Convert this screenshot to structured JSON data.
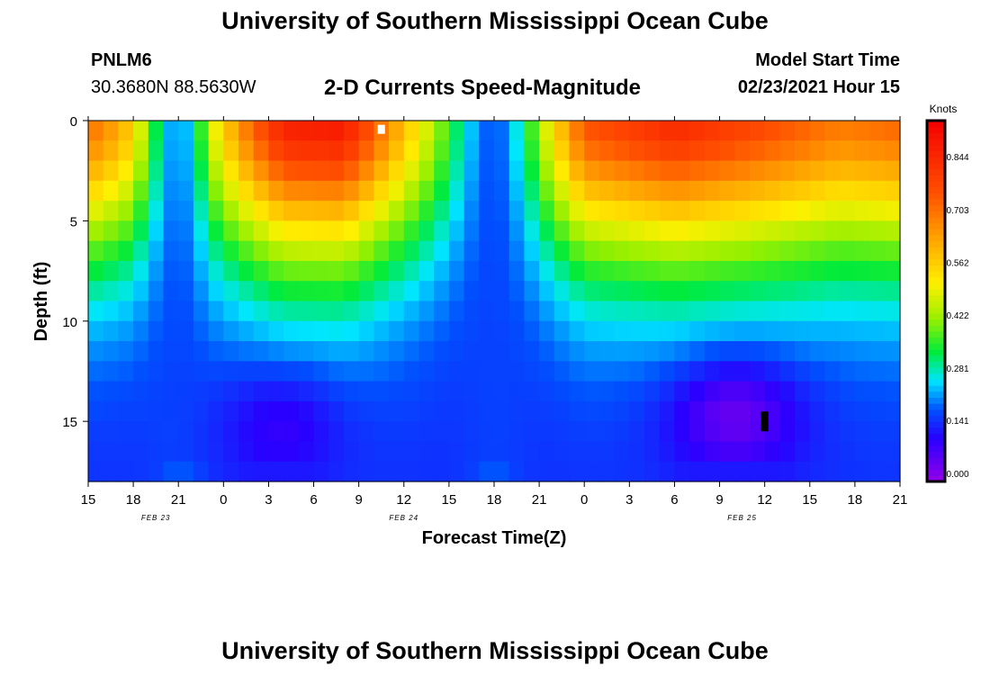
{
  "header": {
    "title_top": "University of Southern Mississippi Ocean Cube",
    "title_bottom": "University of Southern Mississippi Ocean Cube",
    "station_id": "PNLM6",
    "station_coords": "30.3680N 88.5630W",
    "model_start_label": "Model Start Time",
    "model_start_value": "02/23/2021 Hour 15"
  },
  "chart_data": {
    "type": "heatmap",
    "title": "2-D Currents Speed-Magnitude",
    "xlabel": "Forecast Time(Z)",
    "ylabel": "Depth (ft)",
    "colorbar_unit": "Knots",
    "x_start_label": "02/23/2021 15Z",
    "x_hours_range": [
      0,
      54
    ],
    "ylim": [
      0,
      18
    ],
    "y_ticks": [
      0,
      5,
      10,
      15
    ],
    "x_tick_labels": [
      "15",
      "18",
      "21",
      "0",
      "3",
      "6",
      "9",
      "12",
      "15",
      "18",
      "21",
      "0",
      "3",
      "6",
      "9",
      "12",
      "15",
      "18",
      "21"
    ],
    "date_labels": [
      {
        "text": "FEB 23",
        "hour": 4.5
      },
      {
        "text": "FEB 24",
        "hour": 21
      },
      {
        "text": "FEB 25",
        "hour": 43.5
      }
    ],
    "colorbar_ticks": [
      "0.000",
      "0.141",
      "0.281",
      "0.422",
      "0.562",
      "0.703",
      "0.844"
    ],
    "colorbar_values": [
      0.0,
      0.141,
      0.281,
      0.422,
      0.562,
      0.703,
      0.844
    ],
    "vmin": 0.0,
    "vmax": 0.98,
    "depths_ft": [
      0.5,
      1.5,
      2.5,
      3.5,
      4.5,
      5.5,
      6.5,
      7.5,
      8.5,
      9.5,
      10.5,
      11.5,
      12.5,
      13.5,
      14.5,
      15.5,
      16.5,
      17.5
    ],
    "surface_speed_profile": [
      {
        "hour": 0,
        "speed": 0.74
      },
      {
        "hour": 3,
        "speed": 0.62
      },
      {
        "hour": 6,
        "speed": 0.22
      },
      {
        "hour": 8,
        "speed": 0.55
      },
      {
        "hour": 13,
        "speed": 0.9
      },
      {
        "hour": 17,
        "speed": 0.92
      },
      {
        "hour": 21,
        "speed": 0.62
      },
      {
        "hour": 27,
        "speed": 0.17
      },
      {
        "hour": 33,
        "speed": 0.78
      },
      {
        "hour": 39,
        "speed": 0.88
      },
      {
        "hour": 45,
        "speed": 0.8
      },
      {
        "hour": 50,
        "speed": 0.72
      },
      {
        "hour": 54,
        "speed": 0.75
      }
    ],
    "markers": [
      {
        "hour": 19.5,
        "depth": 0.3,
        "color": "#ffffff"
      },
      {
        "hour": 45,
        "depth": 15,
        "color": "#000000"
      }
    ]
  }
}
